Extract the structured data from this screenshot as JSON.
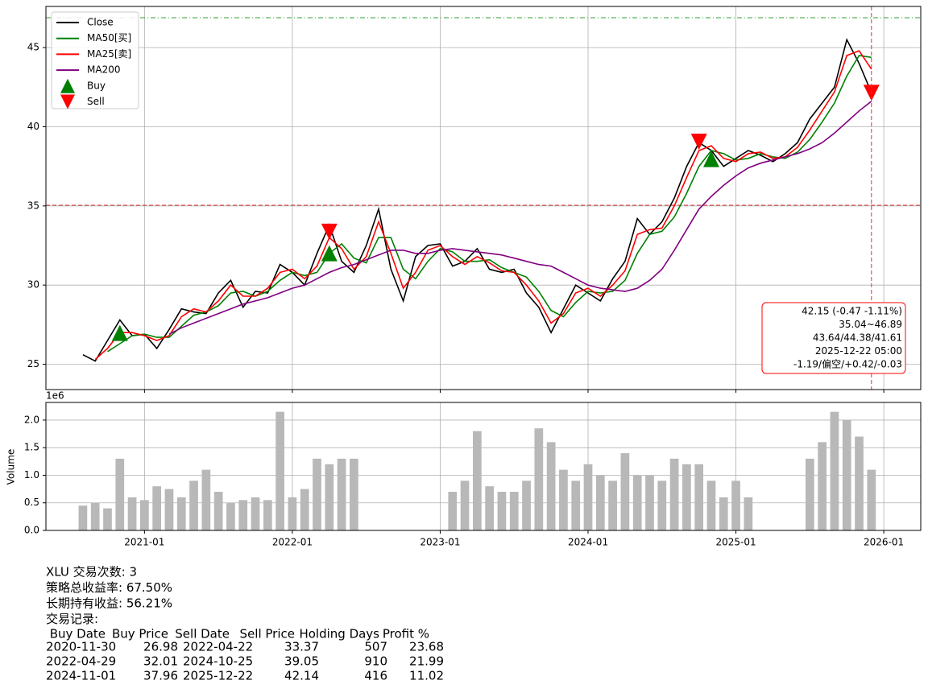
{
  "chart_data": [
    {
      "type": "line",
      "x": [
        "2020-08",
        "2020-09",
        "2020-10",
        "2020-11",
        "2020-12",
        "2021-01",
        "2021-02",
        "2021-03",
        "2021-04",
        "2021-05",
        "2021-06",
        "2021-07",
        "2021-08",
        "2021-09",
        "2021-10",
        "2021-11",
        "2021-12",
        "2022-01",
        "2022-02",
        "2022-03",
        "2022-04",
        "2022-05",
        "2022-06",
        "2022-07",
        "2022-08",
        "2022-09",
        "2022-10",
        "2022-11",
        "2022-12",
        "2023-01",
        "2023-02",
        "2023-03",
        "2023-04",
        "2023-05",
        "2023-06",
        "2023-07",
        "2023-08",
        "2023-09",
        "2023-10",
        "2023-11",
        "2023-12",
        "2024-01",
        "2024-02",
        "2024-03",
        "2024-04",
        "2024-05",
        "2024-06",
        "2024-07",
        "2024-08",
        "2024-09",
        "2024-10",
        "2024-11",
        "2024-12",
        "2025-01",
        "2025-02",
        "2025-03",
        "2025-04",
        "2025-05",
        "2025-06",
        "2025-07",
        "2025-08",
        "2025-09",
        "2025-10",
        "2025-11",
        "2025-12"
      ],
      "series": [
        {
          "name": "Close",
          "color": "#000000",
          "values": [
            25.6,
            25.2,
            26.5,
            27.8,
            26.8,
            26.9,
            26.0,
            27.2,
            28.5,
            28.3,
            28.2,
            29.5,
            30.3,
            28.6,
            29.6,
            29.5,
            31.3,
            30.8,
            30.0,
            32.0,
            33.8,
            31.5,
            30.8,
            32.5,
            34.8,
            31.0,
            29.0,
            31.8,
            32.5,
            32.6,
            31.2,
            31.5,
            32.3,
            31.0,
            30.8,
            31.0,
            29.5,
            28.6,
            27.0,
            28.5,
            30.0,
            29.5,
            29.0,
            30.4,
            31.5,
            34.2,
            33.2,
            34.0,
            35.5,
            37.5,
            39.0,
            38.5,
            37.5,
            38.0,
            38.5,
            38.2,
            37.8,
            38.3,
            39.0,
            40.5,
            41.5,
            42.5,
            45.5,
            44.0,
            42.15
          ]
        },
        {
          "name": "MA50[买]",
          "color": "#008000",
          "values": [
            null,
            null,
            25.8,
            26.3,
            26.8,
            26.9,
            26.7,
            26.7,
            27.4,
            28.1,
            28.3,
            28.7,
            29.5,
            29.6,
            29.3,
            29.6,
            30.3,
            30.8,
            30.6,
            30.8,
            32.0,
            32.6,
            31.7,
            31.4,
            33.0,
            33.0,
            31.0,
            30.4,
            31.5,
            32.3,
            32.1,
            31.5,
            31.5,
            31.6,
            31.1,
            30.8,
            30.5,
            29.6,
            28.4,
            28.0,
            28.9,
            29.6,
            29.5,
            29.6,
            30.3,
            32.0,
            33.2,
            33.4,
            34.3,
            35.8,
            37.5,
            38.5,
            38.3,
            37.9,
            38.0,
            38.3,
            38.1,
            38.0,
            38.4,
            39.2,
            40.3,
            41.5,
            43.2,
            44.5,
            44.38
          ]
        },
        {
          "name": "MA25[卖]",
          "color": "#ff0000",
          "values": [
            null,
            25.3,
            26.0,
            27.0,
            27.0,
            26.8,
            26.5,
            26.8,
            28.0,
            28.5,
            28.3,
            29.0,
            30.0,
            29.3,
            29.3,
            29.8,
            30.8,
            31.0,
            30.4,
            31.2,
            33.0,
            32.3,
            31.0,
            31.8,
            34.0,
            32.0,
            29.8,
            30.8,
            32.2,
            32.5,
            31.8,
            31.3,
            31.8,
            31.4,
            30.9,
            30.8,
            30.0,
            29.0,
            27.6,
            28.2,
            29.5,
            29.8,
            29.3,
            30.0,
            30.9,
            33.2,
            33.5,
            33.6,
            35.0,
            36.8,
            38.5,
            38.8,
            38.0,
            37.8,
            38.3,
            38.4,
            38.0,
            38.1,
            38.7,
            39.8,
            41.0,
            42.2,
            44.5,
            44.8,
            43.64
          ]
        },
        {
          "name": "MA200",
          "color": "#800080",
          "values": [
            null,
            null,
            null,
            null,
            null,
            null,
            null,
            26.9,
            27.3,
            27.6,
            27.9,
            28.2,
            28.5,
            28.8,
            29.0,
            29.2,
            29.5,
            29.8,
            30.0,
            30.4,
            30.8,
            31.1,
            31.3,
            31.6,
            31.9,
            32.2,
            32.2,
            32.0,
            32.0,
            32.2,
            32.3,
            32.2,
            32.1,
            32.0,
            31.9,
            31.7,
            31.5,
            31.3,
            31.2,
            30.8,
            30.4,
            30.0,
            29.8,
            29.7,
            29.6,
            29.8,
            30.3,
            31.0,
            32.2,
            33.5,
            34.8,
            35.6,
            36.3,
            36.9,
            37.4,
            37.7,
            37.9,
            38.1,
            38.3,
            38.6,
            39.0,
            39.6,
            40.3,
            41.0,
            41.61
          ]
        }
      ],
      "markers": [
        {
          "name": "Buy",
          "color": "#008000",
          "shape": "up",
          "x": [
            "2020-11",
            "2022-04",
            "2024-11"
          ],
          "values": [
            26.98,
            32.01,
            37.96
          ]
        },
        {
          "name": "Sell",
          "color": "#ff0000",
          "shape": "down",
          "x": [
            "2022-04",
            "2024-10",
            "2025-12"
          ],
          "values": [
            33.37,
            39.05,
            42.14
          ]
        }
      ],
      "hlines": [
        {
          "value": 46.89,
          "color": "#2ca02c",
          "dash": "6 3 1 3"
        },
        {
          "value": 35.04,
          "color": "#e03030",
          "dash": "5 3"
        }
      ],
      "vline": {
        "x": "2025-12",
        "color": "#e03030"
      },
      "annotation": {
        "color": "#ff0000",
        "lines": [
          "42.15 (-0.47 -1.11%)",
          "35.04~46.89",
          "43.64/44.38/41.61",
          "2025-12-22 05:00",
          "-1.19/偏空/+0.42/-0.03"
        ]
      },
      "ylim": [
        23.4,
        47.6
      ],
      "yticks": [
        25,
        30,
        35,
        40,
        45
      ],
      "grid": true,
      "legend": "upper left"
    },
    {
      "type": "bar",
      "ylabel": "Volume",
      "offset_label": "1e6",
      "color": "#b8b8b8",
      "x": [
        "2020-08",
        "2020-09",
        "2020-10",
        "2020-11",
        "2020-12",
        "2021-01",
        "2021-02",
        "2021-03",
        "2021-04",
        "2021-05",
        "2021-06",
        "2021-07",
        "2021-08",
        "2021-09",
        "2021-10",
        "2021-11",
        "2021-12",
        "2022-01",
        "2022-02",
        "2022-03",
        "2022-04",
        "2022-05",
        "2022-06",
        "2022-07",
        "2022-08",
        "2022-09",
        "2022-10",
        "2022-11",
        "2022-12",
        "2023-01",
        "2023-02",
        "2023-03",
        "2023-04",
        "2023-05",
        "2023-06",
        "2023-07",
        "2023-08",
        "2023-09",
        "2023-10",
        "2023-11",
        "2023-12",
        "2024-01",
        "2024-02",
        "2024-03",
        "2024-04",
        "2024-05",
        "2024-06",
        "2024-07",
        "2024-08",
        "2024-09",
        "2024-10",
        "2024-11",
        "2024-12",
        "2025-01",
        "2025-02",
        "2025-03",
        "2025-04",
        "2025-05",
        "2025-06",
        "2025-07",
        "2025-08",
        "2025-09",
        "2025-10",
        "2025-11",
        "2025-12"
      ],
      "values": [
        0.45,
        0.5,
        0.4,
        1.3,
        0.6,
        0.55,
        0.8,
        0.75,
        0.6,
        0.9,
        1.1,
        0.7,
        0.5,
        0.55,
        0.6,
        0.55,
        2.15,
        0.6,
        0.75,
        1.3,
        1.2,
        1.3,
        1.3,
        null,
        null,
        null,
        null,
        null,
        null,
        null,
        0.7,
        0.9,
        1.8,
        0.8,
        0.7,
        0.7,
        0.9,
        1.85,
        1.6,
        1.1,
        0.9,
        1.2,
        1.0,
        0.9,
        1.4,
        1.0,
        1.0,
        0.9,
        1.3,
        1.2,
        1.2,
        0.9,
        0.6,
        0.9,
        0.6,
        null,
        null,
        null,
        null,
        1.3,
        1.6,
        2.15,
        2.0,
        1.7,
        1.1
      ],
      "xlim": [
        "2020-05",
        "2026-04"
      ],
      "xticks": [
        "2021-01",
        "2022-01",
        "2023-01",
        "2024-01",
        "2025-01",
        "2026-01"
      ],
      "ylim": [
        0,
        2.32
      ],
      "yticks": [
        {
          "value": 0,
          "label": "0.0"
        },
        {
          "value": 0.5,
          "label": "0.5"
        },
        {
          "value": 1,
          "label": "1.0"
        },
        {
          "value": 1.5,
          "label": "1.5"
        },
        {
          "value": 2,
          "label": "2.0"
        }
      ],
      "grid": true
    }
  ],
  "report": {
    "lines": [
      "XLU 交易次数: 3",
      "策略总收益率: 67.50%",
      "长期持有收益: 56.21%",
      "交易记录:"
    ],
    "table": {
      "headers": [
        "Buy Date",
        "Buy Price",
        "Sell Date",
        "Sell Price",
        "Holding Days",
        "Profit %"
      ],
      "rows": [
        [
          "2020-11-30",
          26.98,
          "2022-04-22",
          33.37,
          507,
          23.68
        ],
        [
          "2022-04-29",
          32.01,
          "2024-10-25",
          39.05,
          910,
          21.99
        ],
        [
          "2024-11-01",
          37.96,
          "2025-12-22",
          42.14,
          416,
          11.02
        ]
      ]
    }
  }
}
